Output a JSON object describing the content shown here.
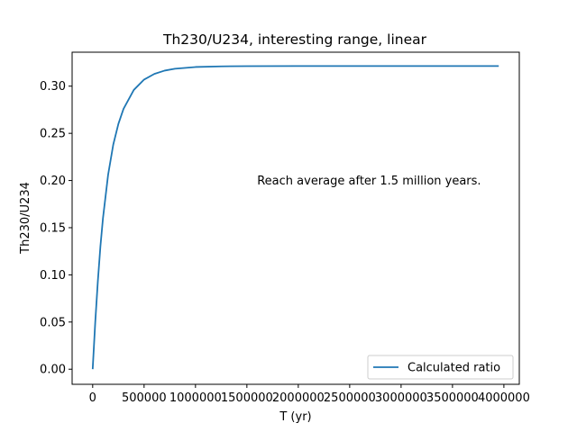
{
  "chart_data": {
    "type": "line",
    "title": "Th230/U234, interesting range, linear",
    "xlabel": "T (yr)",
    "ylabel": "Th230/U234",
    "xlim": [
      -200000,
      4150000
    ],
    "ylim": [
      -0.016,
      0.336
    ],
    "x_ticks": [
      0,
      500000,
      1000000,
      1500000,
      2000000,
      2500000,
      3000000,
      3500000,
      4000000
    ],
    "x_tick_labels": [
      "0",
      "500000",
      "1000000",
      "1500000",
      "2000000",
      "2500000",
      "3000000",
      "3500000",
      "4000000"
    ],
    "y_ticks": [
      0.0,
      0.05,
      0.1,
      0.15,
      0.2,
      0.25,
      0.3
    ],
    "y_tick_labels": [
      "0.00",
      "0.05",
      "0.10",
      "0.15",
      "0.20",
      "0.25",
      "0.30"
    ],
    "grid": false,
    "legend_position": "lower-right",
    "series": [
      {
        "name": "Calculated ratio",
        "color": "#1f77b4",
        "x": [
          0,
          25000,
          50000,
          75000,
          100000,
          150000,
          200000,
          250000,
          300000,
          400000,
          500000,
          600000,
          700000,
          800000,
          1000000,
          1250000,
          1500000,
          2000000,
          2500000,
          3000000,
          3500000,
          3950000
        ],
        "y": [
          0.0,
          0.05,
          0.093,
          0.13,
          0.16,
          0.206,
          0.238,
          0.26,
          0.276,
          0.296,
          0.307,
          0.313,
          0.3165,
          0.3185,
          0.3203,
          0.321,
          0.3212,
          0.3213,
          0.3213,
          0.3213,
          0.3213,
          0.3213
        ]
      }
    ],
    "annotations": [
      {
        "text": "Reach average after 1.5 million years.",
        "x": 1600000,
        "y": 0.2
      }
    ]
  }
}
